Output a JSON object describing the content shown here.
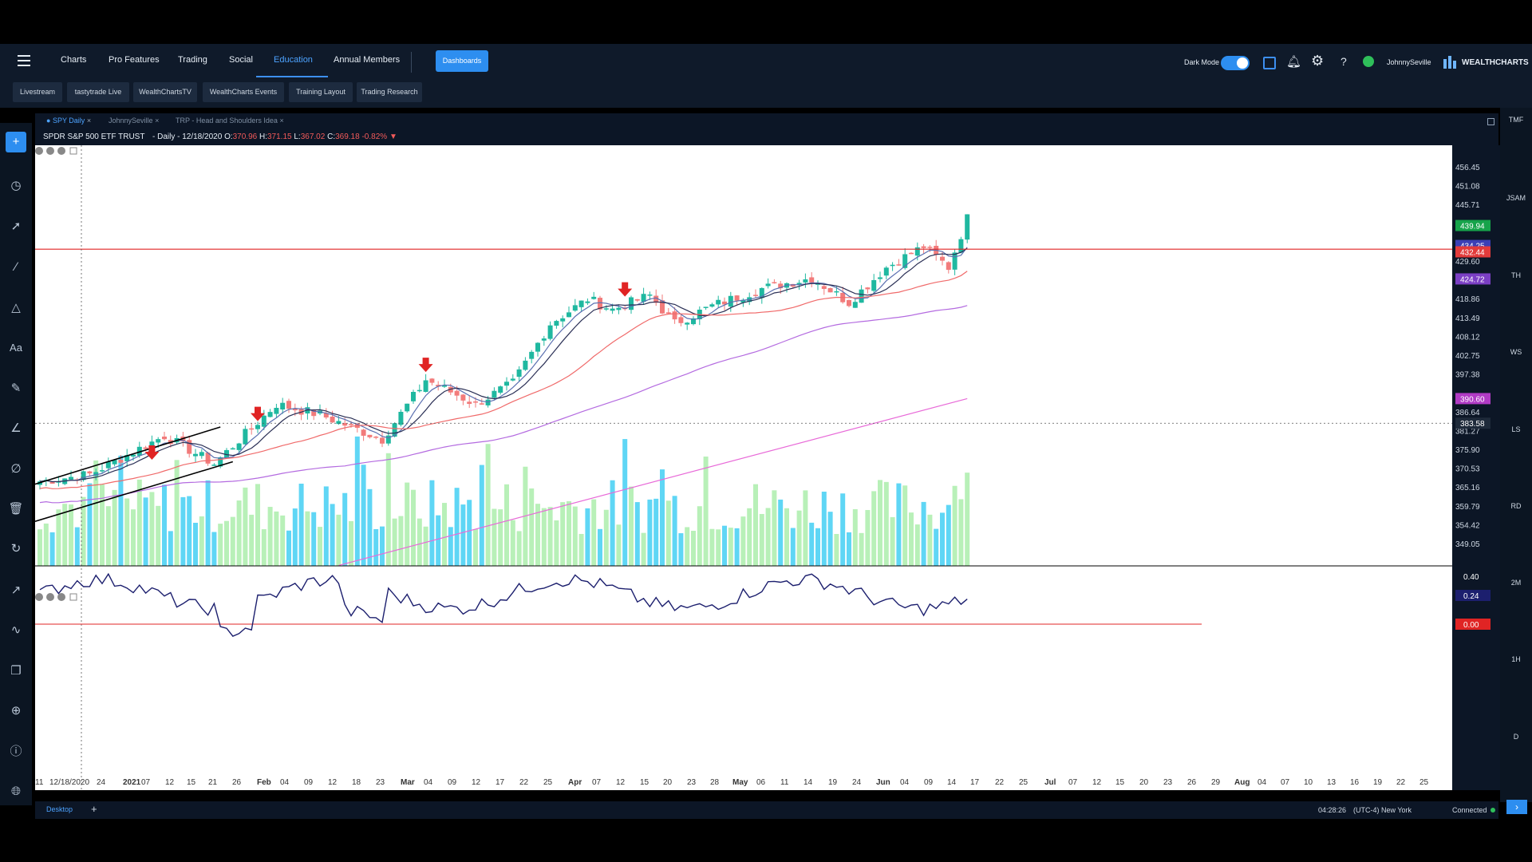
{
  "nav": {
    "items": [
      "Charts",
      "Pro Features",
      "Trading",
      "Social",
      "Education",
      "Annual Members"
    ],
    "active": "Education",
    "dashboards_label": "Dashboards",
    "dark_mode_label": "Dark Mode",
    "username": "JohnnySeville",
    "brand": "WEALTHCHARTS",
    "help_label": "?"
  },
  "subnav": [
    "Livestream",
    "tastytrade Live",
    "WealthChartsTV",
    "WealthCharts Events",
    "Training Layout",
    "Trading Research"
  ],
  "tabs": [
    "SPY Daily",
    "JohnnySeville",
    "TRP - Head and Shoulders Idea"
  ],
  "header": {
    "name": "SPDR S&P 500 ETF TRUST",
    "meta": " - Daily - 12/18/2020 ",
    "open_label": "O:",
    "open": "370.96",
    "high_label": "H:",
    "high": "371.15",
    "low_label": "L:",
    "low": "367.02",
    "close_label": "C:",
    "close": "369.18",
    "change": "-0.82%"
  },
  "timeframes": [
    "TMF",
    "JSAM",
    "TH",
    "WS",
    "LS",
    "RD",
    "2M",
    "1H",
    "D"
  ],
  "status": {
    "workspace": "Desktop",
    "add": "+",
    "time": "04:28:26",
    "timezone": "(UTC-4) New York",
    "connection": "Connected"
  },
  "colors": {
    "up": "#1fb8a0",
    "down": "#f27b7b",
    "volume_up": "#b8f0b8",
    "volume_down": "#5fd6f5",
    "sma_fast": "#2a2f55",
    "sma_mid": "#f06a6a",
    "sma_slow": "#b46be0",
    "sma_200": "#e86ad8",
    "oscillator": "#1c1f6e"
  },
  "chart_data": {
    "type": "candlestick",
    "symbol": "SPY",
    "interval": "Daily",
    "y_range": [
      345.3,
      460.3
    ],
    "y_ticks": [
      456.45,
      451.08,
      445.71,
      429.6,
      418.86,
      413.49,
      408.12,
      402.75,
      397.38,
      386.64,
      381.27,
      375.9,
      370.53,
      365.16,
      359.79,
      354.42,
      349.05
    ],
    "x_ticks": [
      "11",
      "12/18/2020",
      "24",
      "2021",
      "07",
      "12",
      "15",
      "21",
      "26",
      "Feb",
      "04",
      "09",
      "12",
      "18",
      "23",
      "Mar",
      "04",
      "09",
      "12",
      "17",
      "22",
      "25",
      "Apr",
      "07",
      "12",
      "15",
      "20",
      "23",
      "28",
      "May",
      "06",
      "11",
      "14",
      "19",
      "24",
      "Jun",
      "04",
      "09",
      "14",
      "17",
      "22",
      "25",
      "Jul",
      "07",
      "12",
      "15",
      "20",
      "23",
      "26",
      "29",
      "Aug",
      "04",
      "07",
      "10",
      "13",
      "16",
      "19",
      "22",
      "25"
    ],
    "price_tags": [
      {
        "value": 439.94,
        "label": "439.94",
        "color": "#16a34a"
      },
      {
        "value": 434.25,
        "label": "434.25",
        "color": "#3b3fb5"
      },
      {
        "value": 432.44,
        "label": "432.44",
        "color": "#e23b3b"
      },
      {
        "value": 424.72,
        "label": "424.72",
        "color": "#7b3fc4"
      },
      {
        "value": 390.6,
        "label": "390.60",
        "color": "#b13bc4"
      },
      {
        "value": 383.58,
        "label": "383.58",
        "color": "#1e2a3a"
      }
    ],
    "horizontal_line": 433.2,
    "crosshair": {
      "x_label": "12/18/2020",
      "y_label": "383.58"
    },
    "down_arrows": 4,
    "oscillator": {
      "levels": [
        0.4,
        0.24,
        0.0
      ],
      "labels": [
        "0.40",
        "0.24",
        "0.00"
      ]
    },
    "legend": "none"
  }
}
